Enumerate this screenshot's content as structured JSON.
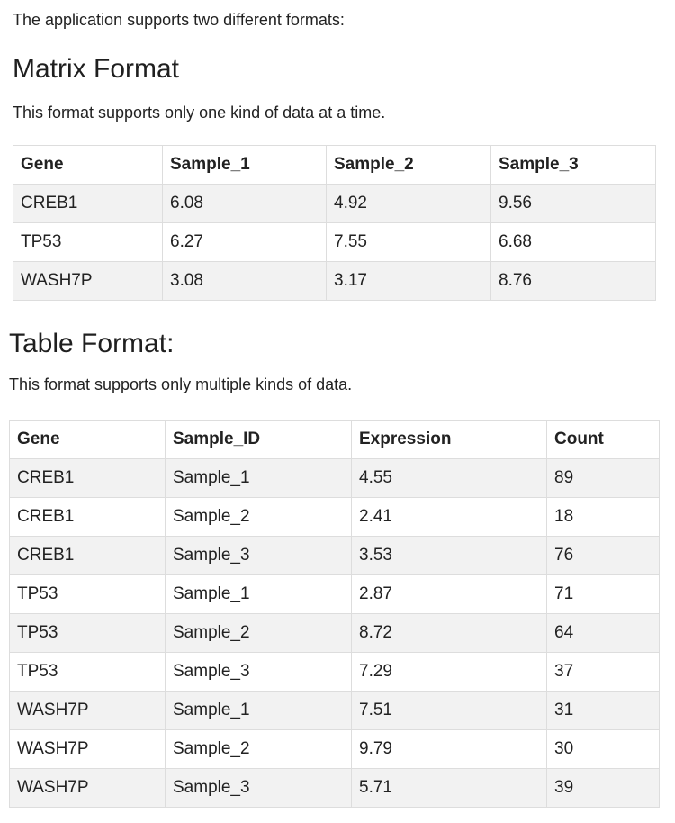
{
  "intro": "The application supports two different formats:",
  "matrix_section": {
    "title": "Matrix Format",
    "description": "This format supports only one kind of data at a time.",
    "headers": [
      "Gene",
      "Sample_1",
      "Sample_2",
      "Sample_3"
    ],
    "rows": [
      [
        "CREB1",
        "6.08",
        "4.92",
        "9.56"
      ],
      [
        "TP53",
        "6.27",
        "7.55",
        "6.68"
      ],
      [
        "WASH7P",
        "3.08",
        "3.17",
        "8.76"
      ]
    ]
  },
  "table_section": {
    "title": "Table Format:",
    "description": "This format supports only multiple kinds of data.",
    "headers": [
      "Gene",
      "Sample_ID",
      "Expression",
      "Count"
    ],
    "rows": [
      [
        "CREB1",
        "Sample_1",
        "4.55",
        "89"
      ],
      [
        "CREB1",
        "Sample_2",
        "2.41",
        "18"
      ],
      [
        "CREB1",
        "Sample_3",
        "3.53",
        "76"
      ],
      [
        "TP53",
        "Sample_1",
        "2.87",
        "71"
      ],
      [
        "TP53",
        "Sample_2",
        "8.72",
        "64"
      ],
      [
        "TP53",
        "Sample_3",
        "7.29",
        "37"
      ],
      [
        "WASH7P",
        "Sample_1",
        "7.51",
        "31"
      ],
      [
        "WASH7P",
        "Sample_2",
        "9.79",
        "30"
      ],
      [
        "WASH7P",
        "Sample_3",
        "5.71",
        "39"
      ]
    ]
  }
}
